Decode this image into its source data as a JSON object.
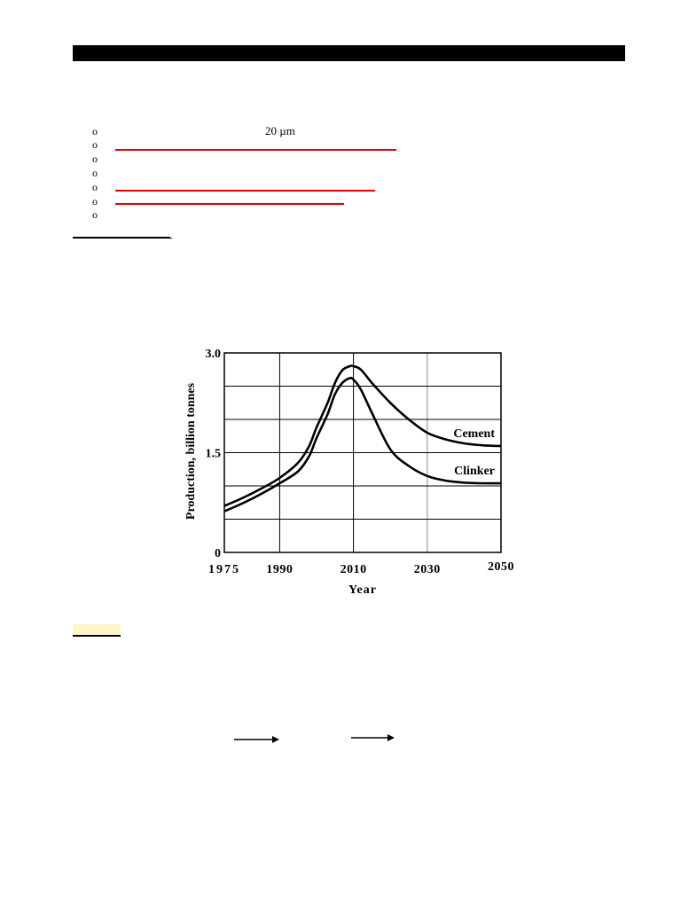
{
  "bullets": [
    {
      "symbol": "o",
      "text": "20 µm",
      "underline": false
    },
    {
      "symbol": "o",
      "text": "",
      "underline": true
    },
    {
      "symbol": "o",
      "text": "",
      "underline": false
    },
    {
      "symbol": "o",
      "text": "",
      "underline": false
    },
    {
      "symbol": "o",
      "text": "",
      "underline": true
    },
    {
      "symbol": "o",
      "text": "",
      "underline": true
    },
    {
      "symbol": "o",
      "text": "",
      "underline": false
    }
  ],
  "chart_data": {
    "type": "line",
    "title": "",
    "xlabel": "Year",
    "ylabel": "Production, billion tonnes",
    "xlim": [
      1975,
      2050
    ],
    "ylim": [
      0,
      3.0
    ],
    "x_ticks": [
      1975,
      1990,
      2010,
      2030,
      2050
    ],
    "x_tick_labels": [
      "1975",
      "1990",
      "2010",
      "2030",
      "2050"
    ],
    "y_ticks": [
      0,
      1.5,
      3.0
    ],
    "y_tick_labels": [
      "0",
      "1.5",
      "3.0"
    ],
    "x_gridlines": [
      1990,
      2010,
      2030
    ],
    "y_gridlines": [
      0.5,
      1.0,
      1.5,
      2.0,
      2.5
    ],
    "grid": true,
    "legend": "inline labels at right end of each curve",
    "series": [
      {
        "name": "Cement",
        "x": [
          1975,
          1980,
          1985,
          1990,
          1995,
          1998,
          2000,
          2003,
          2005,
          2007,
          2009,
          2010,
          2012,
          2015,
          2020,
          2025,
          2030,
          2035,
          2040,
          2045,
          2050
        ],
        "y": [
          0.7,
          0.82,
          0.96,
          1.12,
          1.35,
          1.6,
          1.88,
          2.25,
          2.55,
          2.74,
          2.8,
          2.8,
          2.75,
          2.55,
          2.25,
          2.0,
          1.8,
          1.7,
          1.64,
          1.61,
          1.6
        ],
        "color": "#000000"
      },
      {
        "name": "Clinker",
        "x": [
          1975,
          1980,
          1985,
          1990,
          1995,
          1998,
          2000,
          2003,
          2005,
          2007,
          2009,
          2010,
          2012,
          2015,
          2020,
          2025,
          2030,
          2035,
          2040,
          2045,
          2050
        ],
        "y": [
          0.62,
          0.74,
          0.88,
          1.04,
          1.22,
          1.45,
          1.72,
          2.08,
          2.38,
          2.55,
          2.62,
          2.6,
          2.45,
          2.1,
          1.55,
          1.3,
          1.15,
          1.08,
          1.05,
          1.04,
          1.04
        ],
        "color": "#000000"
      }
    ]
  }
}
